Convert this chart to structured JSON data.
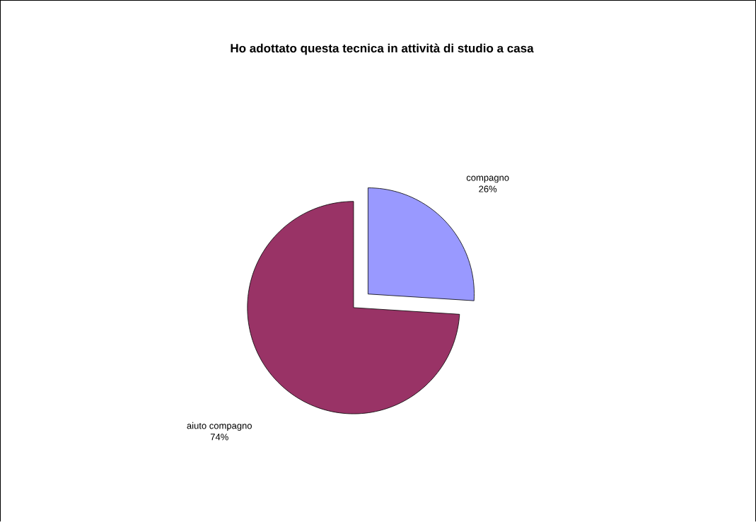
{
  "chart_data": {
    "type": "pie",
    "title": "Ho adottato questa tecnica in attività di studio a casa",
    "categories": [
      "compagno",
      "aiuto compagno"
    ],
    "values": [
      26,
      74
    ],
    "colors": [
      "#9999ff",
      "#993366"
    ],
    "value_labels": [
      "26%",
      "74%"
    ]
  }
}
